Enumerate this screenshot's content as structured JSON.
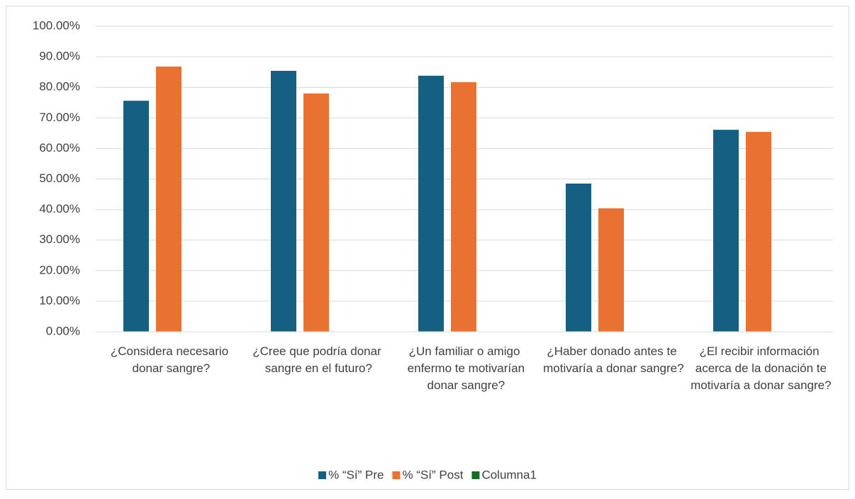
{
  "chart_data": {
    "type": "bar",
    "categories": [
      "¿Considera necesario donar sangre?",
      "¿Cree que podría donar sangre en el futuro?",
      "¿Un familiar o amigo enfermo te motivarían donar sangre?",
      "¿Haber donado antes te motivaría a donar sangre?",
      "¿El recibir información acerca de la donación te motivaría a donar sangre?"
    ],
    "series": [
      {
        "name": "% “Sí” Pre",
        "color": "#156082",
        "values": [
          75.6,
          85.4,
          83.8,
          48.5,
          66.1
        ]
      },
      {
        "name": "% “Sí” Post",
        "color": "#e97132",
        "values": [
          86.8,
          78.0,
          81.7,
          40.4,
          65.4
        ]
      },
      {
        "name": "Columna1",
        "color": "#196b24",
        "values": [
          null,
          null,
          null,
          null,
          null
        ]
      }
    ],
    "ylim": [
      0,
      100
    ],
    "yticks": [
      {
        "value": 0,
        "label": "0.00%"
      },
      {
        "value": 10,
        "label": "10.00%"
      },
      {
        "value": 20,
        "label": "20.00%"
      },
      {
        "value": 30,
        "label": "30.00%"
      },
      {
        "value": 40,
        "label": "40.00%"
      },
      {
        "value": 50,
        "label": "50.00%"
      },
      {
        "value": 60,
        "label": "60.00%"
      },
      {
        "value": 70,
        "label": "70.00%"
      },
      {
        "value": 80,
        "label": "80.00%"
      },
      {
        "value": 90,
        "label": "90.00%"
      },
      {
        "value": 100,
        "label": "100.00%"
      }
    ],
    "grid": true,
    "legend": "bottom"
  }
}
